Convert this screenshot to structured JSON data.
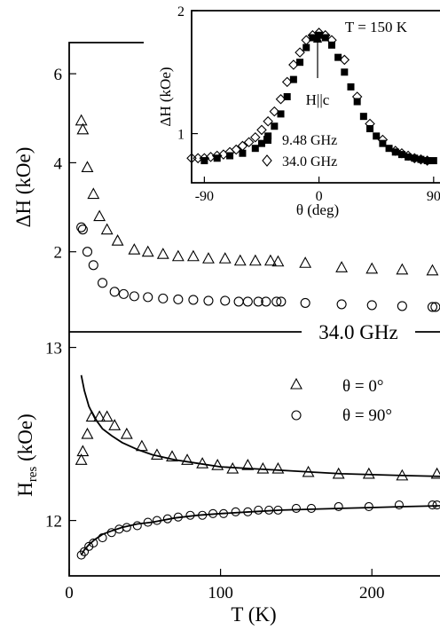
{
  "chart_data": [
    {
      "id": "top",
      "type": "scatter",
      "ylabel": "ΔH (kOe)",
      "xlim": [
        0,
        245
      ],
      "ylim": [
        0.2,
        6.7
      ],
      "yticks": [
        2,
        4,
        6
      ],
      "frequency_label": "34.0 GHz",
      "series": [
        {
          "marker": "triangle",
          "x": [
            8,
            9,
            12,
            16,
            20,
            25,
            32,
            43,
            52,
            62,
            72,
            82,
            92,
            103,
            113,
            123,
            133,
            138,
            156,
            180,
            200,
            220,
            240
          ],
          "y": [
            4.95,
            4.75,
            3.9,
            3.3,
            2.8,
            2.5,
            2.25,
            2.05,
            2.0,
            1.95,
            1.9,
            1.9,
            1.85,
            1.85,
            1.8,
            1.8,
            1.8,
            1.78,
            1.75,
            1.65,
            1.62,
            1.6,
            1.58
          ]
        },
        {
          "marker": "circle",
          "x": [
            8,
            9,
            12,
            16,
            22,
            30,
            36,
            43,
            52,
            62,
            72,
            82,
            92,
            103,
            112,
            118,
            125,
            130,
            137,
            140,
            156,
            180,
            200,
            220,
            240,
            242
          ],
          "y": [
            2.55,
            2.5,
            2.0,
            1.7,
            1.3,
            1.1,
            1.05,
            1.0,
            0.98,
            0.95,
            0.93,
            0.92,
            0.9,
            0.9,
            0.88,
            0.88,
            0.88,
            0.88,
            0.88,
            0.88,
            0.85,
            0.82,
            0.8,
            0.78,
            0.76,
            0.76
          ]
        }
      ]
    },
    {
      "id": "bottom",
      "type": "scatter",
      "xlabel": "T (K)",
      "ylabel_main": "H",
      "ylabel_sub": "res",
      "ylabel_unit": " (kOe)",
      "xlim": [
        0,
        245
      ],
      "ylim": [
        11.68,
        13.09
      ],
      "xticks": [
        0,
        100,
        200
      ],
      "yticks": [
        12,
        13
      ],
      "legend": [
        {
          "marker": "triangle",
          "label": "θ = 0°"
        },
        {
          "marker": "circle",
          "label": "θ = 90°"
        }
      ],
      "series": [
        {
          "marker": "triangle",
          "x": [
            8,
            9,
            12,
            15,
            20,
            25,
            30,
            38,
            48,
            58,
            68,
            78,
            88,
            98,
            108,
            118,
            128,
            138,
            158,
            178,
            198,
            220,
            243
          ],
          "y": [
            12.35,
            12.4,
            12.5,
            12.6,
            12.6,
            12.6,
            12.55,
            12.5,
            12.43,
            12.38,
            12.37,
            12.35,
            12.33,
            12.32,
            12.3,
            12.32,
            12.3,
            12.3,
            12.28,
            12.27,
            12.27,
            12.26,
            12.27
          ]
        },
        {
          "marker": "circle",
          "x": [
            8,
            10,
            13,
            16,
            22,
            28,
            33,
            38,
            45,
            52,
            58,
            65,
            72,
            80,
            88,
            95,
            102,
            110,
            118,
            125,
            132,
            138,
            150,
            160,
            178,
            198,
            218,
            240,
            243
          ],
          "y": [
            11.8,
            11.82,
            11.85,
            11.87,
            11.9,
            11.93,
            11.95,
            11.96,
            11.97,
            11.99,
            12.0,
            12.01,
            12.02,
            12.03,
            12.03,
            12.04,
            12.04,
            12.05,
            12.05,
            12.06,
            12.06,
            12.06,
            12.07,
            12.07,
            12.08,
            12.08,
            12.09,
            12.09,
            12.09
          ]
        }
      ],
      "fits": [
        {
          "x": [
            8,
            10,
            13,
            17,
            22,
            28,
            35,
            45,
            55,
            70,
            85,
            100,
            120,
            140,
            160,
            180,
            200,
            220,
            245
          ],
          "y": [
            12.84,
            12.75,
            12.66,
            12.59,
            12.53,
            12.49,
            12.45,
            12.41,
            12.38,
            12.35,
            12.33,
            12.31,
            12.3,
            12.29,
            12.28,
            12.27,
            12.265,
            12.26,
            12.255
          ]
        },
        {
          "x": [
            8,
            10,
            13,
            17,
            22,
            28,
            35,
            45,
            55,
            70,
            85,
            100,
            120,
            140,
            160,
            180,
            200,
            220,
            245
          ],
          "y": [
            11.8,
            11.83,
            11.86,
            11.89,
            11.92,
            11.94,
            11.96,
            11.98,
            11.99,
            12.015,
            12.03,
            12.04,
            12.05,
            12.06,
            12.065,
            12.07,
            12.075,
            12.08,
            12.085
          ]
        }
      ]
    },
    {
      "id": "inset",
      "type": "scatter",
      "xlabel": "θ (deg)",
      "ylabel": "ΔH (kOe)",
      "xlim": [
        -100,
        95
      ],
      "ylim": [
        0.6,
        2.0
      ],
      "xticks": [
        -90,
        0,
        90
      ],
      "yticks": [
        1,
        2
      ],
      "annotation_temperature": "T = 150 K",
      "annotation_arrow": "H||c",
      "legend": [
        {
          "marker": "filled-square",
          "label": "9.48 GHz"
        },
        {
          "marker": "diamond",
          "label": "34.0 GHz"
        }
      ],
      "series": [
        {
          "marker": "filled-square",
          "x": [
            -90,
            -80,
            -70,
            -60,
            -50,
            -45,
            -40,
            -35,
            -30,
            -25,
            -20,
            -15,
            -10,
            -5,
            0,
            5,
            10,
            15,
            20,
            25,
            30,
            35,
            40,
            45,
            50,
            55,
            60,
            65,
            70,
            75,
            80,
            85,
            90
          ],
          "y": [
            0.78,
            0.8,
            0.82,
            0.84,
            0.88,
            0.92,
            0.98,
            1.06,
            1.16,
            1.3,
            1.44,
            1.58,
            1.7,
            1.78,
            1.8,
            1.78,
            1.72,
            1.62,
            1.5,
            1.38,
            1.26,
            1.14,
            1.04,
            0.98,
            0.92,
            0.88,
            0.85,
            0.83,
            0.81,
            0.8,
            0.79,
            0.78,
            0.78
          ]
        },
        {
          "marker": "diamond",
          "x": [
            -100,
            -95,
            -90,
            -85,
            -80,
            -75,
            -70,
            -65,
            -60,
            -55,
            -50,
            -45,
            -40,
            -35,
            -30,
            -25,
            -20,
            -15,
            -10,
            -5,
            0,
            5,
            10,
            20,
            30,
            40,
            50,
            60,
            65,
            70,
            75,
            80,
            85
          ],
          "y": [
            0.8,
            0.8,
            0.8,
            0.81,
            0.82,
            0.83,
            0.85,
            0.87,
            0.9,
            0.93,
            0.97,
            1.03,
            1.1,
            1.18,
            1.28,
            1.42,
            1.56,
            1.66,
            1.76,
            1.8,
            1.82,
            1.8,
            1.76,
            1.6,
            1.3,
            1.08,
            0.95,
            0.86,
            0.84,
            0.82,
            0.8,
            0.79,
            0.78
          ]
        }
      ]
    }
  ]
}
